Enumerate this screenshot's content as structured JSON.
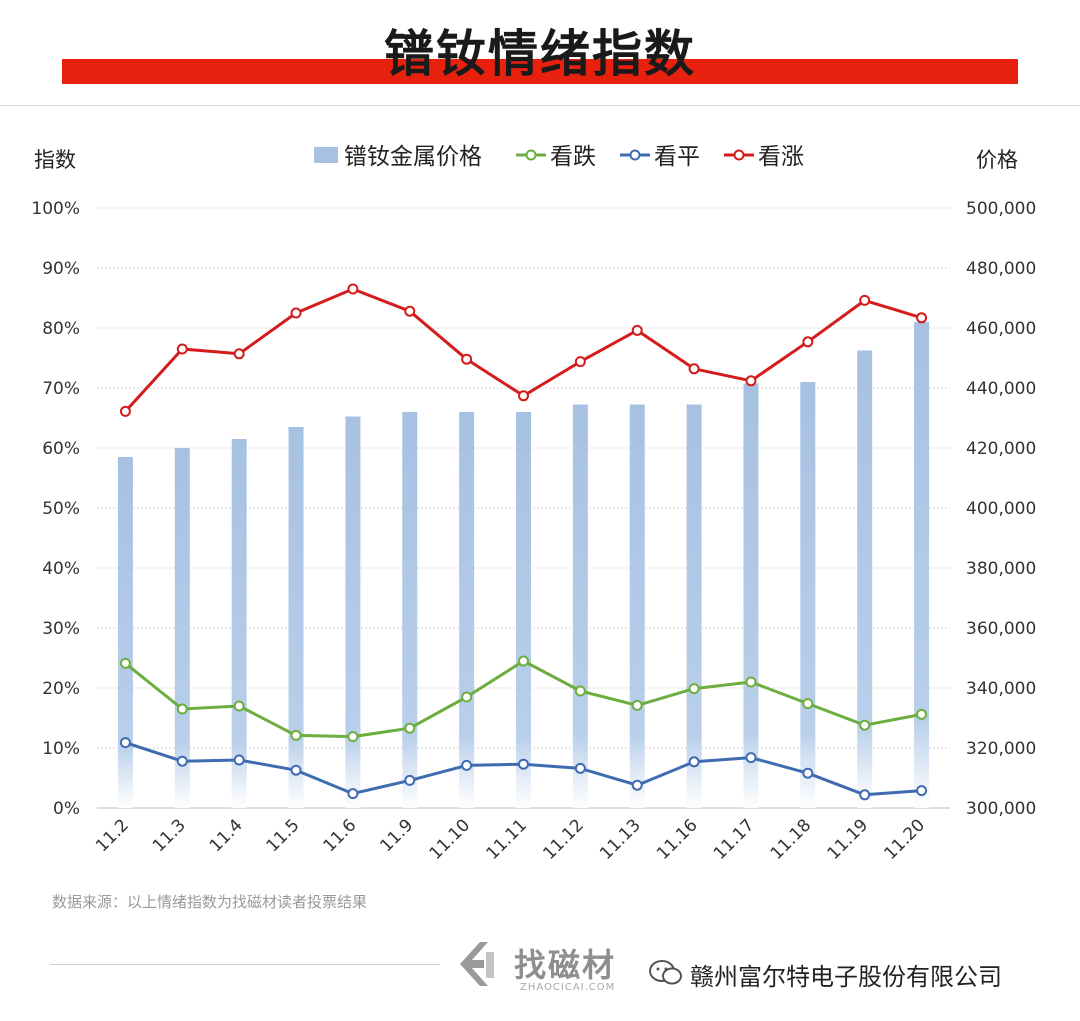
{
  "header": {
    "title": "镨钕情绪指数"
  },
  "chart_data": {
    "type": "bar",
    "left_axis_label": "指数",
    "right_axis_label": "价格",
    "categories": [
      "11.2",
      "11.3",
      "11.4",
      "11.5",
      "11.6",
      "11.9",
      "11.10",
      "11.11",
      "11.12",
      "11.13",
      "11.16",
      "11.17",
      "11.18",
      "11.19",
      "11.20"
    ],
    "left_ticks": [
      "0%",
      "10%",
      "20%",
      "30%",
      "40%",
      "50%",
      "60%",
      "70%",
      "80%",
      "90%",
      "100%"
    ],
    "right_ticks": [
      "300,000",
      "320,000",
      "340,000",
      "360,000",
      "380,000",
      "400,000",
      "420,000",
      "440,000",
      "460,000",
      "480,000",
      "500,000"
    ],
    "ylim_left": [
      0,
      100
    ],
    "ylim_right": [
      300000,
      500000
    ],
    "grid": true,
    "legend_position": "top",
    "bar_series": {
      "name": "镨钕金属价格",
      "axis": "right",
      "color": "#a7c1e3",
      "values": [
        417000,
        420000,
        423000,
        427000,
        430500,
        432000,
        432000,
        432000,
        434500,
        434500,
        434500,
        441500,
        442000,
        452500,
        462000
      ]
    },
    "line_series": [
      {
        "name": "看跌",
        "color": "#6cae3f",
        "values": [
          24.1,
          16.5,
          17.0,
          12.1,
          11.9,
          13.3,
          18.5,
          24.5,
          19.5,
          17.1,
          19.9,
          21.0,
          17.4,
          13.8,
          15.6
        ]
      },
      {
        "name": "看平",
        "color": "#3f6cb0",
        "values": [
          10.9,
          7.8,
          8.0,
          6.3,
          2.4,
          4.6,
          7.1,
          7.3,
          6.6,
          3.8,
          7.7,
          8.4,
          5.8,
          2.2,
          2.9
        ]
      },
      {
        "name": "看涨",
        "color": "#d41c1c",
        "values": [
          66.1,
          76.5,
          75.7,
          82.5,
          86.5,
          82.8,
          74.8,
          68.7,
          74.4,
          79.6,
          73.2,
          71.2,
          77.7,
          84.6,
          81.7
        ]
      }
    ]
  },
  "footer": {
    "source": "数据来源：以上情绪指数为找磁材读者投票结果",
    "brand": "找磁材",
    "brand_sub": "ZHAOCICAI.COM",
    "company": "赣州富尔特电子股份有限公司"
  }
}
